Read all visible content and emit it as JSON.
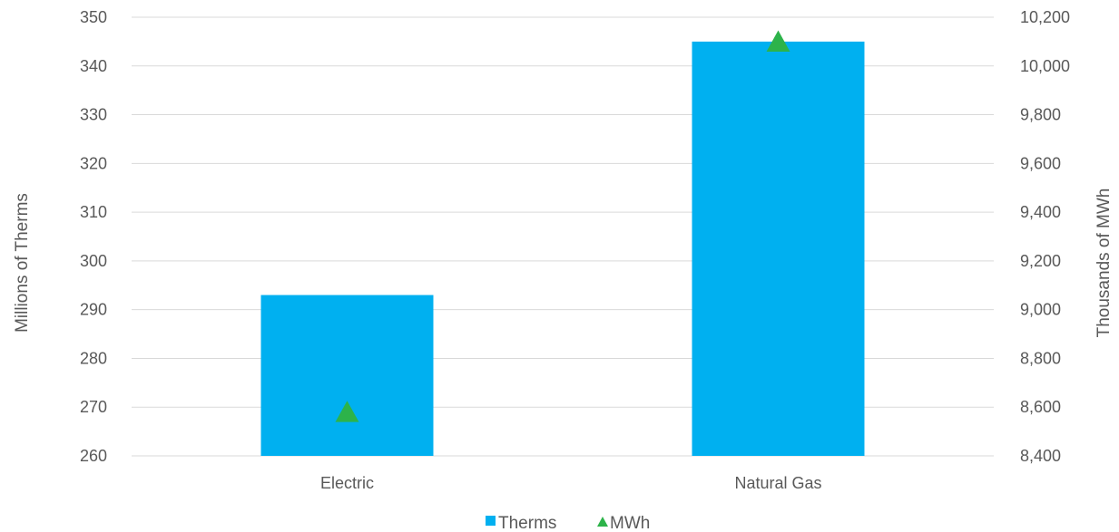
{
  "chart_data": {
    "type": "bar",
    "categories": [
      "Electric",
      "Natural Gas"
    ],
    "series": [
      {
        "name": "Therms",
        "axis": "left",
        "kind": "bar",
        "color": "#00b0f0",
        "values": [
          293,
          345
        ]
      },
      {
        "name": "MWh",
        "axis": "right",
        "kind": "marker-triangle",
        "color": "#2db34a",
        "values": [
          8580,
          10100
        ]
      }
    ],
    "y_left": {
      "label": "Millions of Therms",
      "min": 260,
      "max": 350,
      "ticks": [
        "260",
        "270",
        "280",
        "290",
        "300",
        "310",
        "320",
        "330",
        "340",
        "350"
      ]
    },
    "y_right": {
      "label": "Thousands  of MWh",
      "min": 8400,
      "max": 10200,
      "ticks": [
        "8,400",
        "8,600",
        "8,800",
        "9,000",
        "9,200",
        "9,400",
        "9,600",
        "9,800",
        "10,000",
        "10,200"
      ]
    },
    "grid": true,
    "legend": {
      "position": "bottom",
      "entries": [
        "Therms",
        "MWh"
      ]
    }
  }
}
